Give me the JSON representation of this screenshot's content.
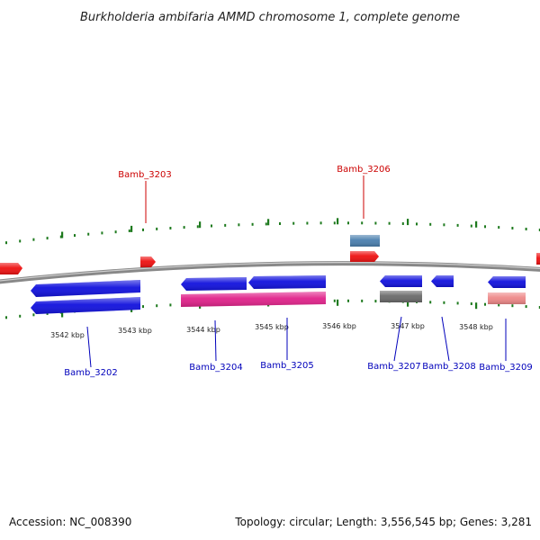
{
  "title": "Burkholderia ambifaria AMMD chromosome 1, complete genome",
  "footer": {
    "accession": "Accession: NC_008390",
    "stats": "Topology: circular; Length: 3,556,545 bp; Genes: 3,281"
  },
  "colors": {
    "backbone": "#888888",
    "ticks": "#1e7a1e",
    "forward_label": "#cc0000",
    "reverse_label": "#0000bb",
    "gene_red": "#ee1111",
    "gene_blue": "#1111dd",
    "gene_magenta": "#e0228a",
    "gene_steel": "#4a7fae",
    "gene_gray": "#6a6a6a",
    "gene_pink": "#ee8888"
  },
  "axis": {
    "ticks": [
      {
        "label": "3542 kbp"
      },
      {
        "label": "3543 kbp"
      },
      {
        "label": "3544 kbp"
      },
      {
        "label": "3545 kbp"
      },
      {
        "label": "3546 kbp"
      },
      {
        "label": "3547 kbp"
      },
      {
        "label": "3548 kbp"
      }
    ]
  },
  "genes": {
    "forward": [
      {
        "label": "Bamb_3203"
      },
      {
        "label": "Bamb_3206"
      }
    ],
    "reverse": [
      {
        "label": "Bamb_3202"
      },
      {
        "label": "Bamb_3204"
      },
      {
        "label": "Bamb_3205"
      },
      {
        "label": "Bamb_3207"
      },
      {
        "label": "Bamb_3208"
      },
      {
        "label": "Bamb_3209"
      }
    ]
  }
}
